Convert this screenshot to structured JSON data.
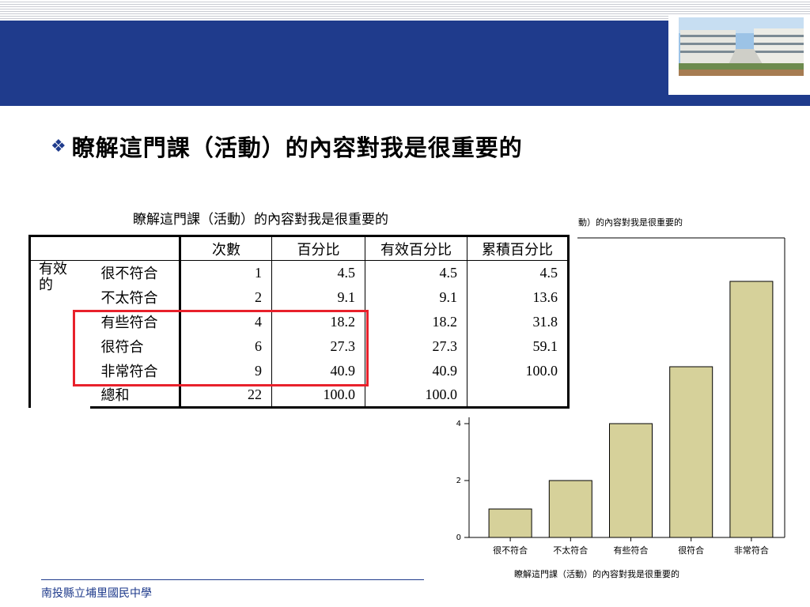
{
  "slide": {
    "heading": "瞭解這門課（活動）的內容對我是很重要的",
    "bullet_icon": "diamond-bullet-icon",
    "footer": "南投縣立埔里國民中學",
    "accent_color": "#1f3b8c",
    "highlight_color": "#e8212b"
  },
  "table": {
    "title": "瞭解這門課（活動）的內容對我是很重要的",
    "headers": [
      "次數",
      "百分比",
      "有效百分比",
      "累積百分比"
    ],
    "group_label": "有效的",
    "rows": [
      {
        "label": "很不符合",
        "count": "1",
        "percent": "4.5",
        "valid": "4.5",
        "cumulative": "4.5"
      },
      {
        "label": "不太符合",
        "count": "2",
        "percent": "9.1",
        "valid": "9.1",
        "cumulative": "13.6"
      },
      {
        "label": "有些符合",
        "count": "4",
        "percent": "18.2",
        "valid": "18.2",
        "cumulative": "31.8"
      },
      {
        "label": "很符合",
        "count": "6",
        "percent": "27.3",
        "valid": "27.3",
        "cumulative": "59.1"
      },
      {
        "label": "非常符合",
        "count": "9",
        "percent": "40.9",
        "valid": "40.9",
        "cumulative": "100.0"
      },
      {
        "label": "總和",
        "count": "22",
        "percent": "100.0",
        "valid": "100.0",
        "cumulative": ""
      }
    ]
  },
  "chart_data": {
    "type": "bar",
    "title_fragment": "動）的內容對我是很重要的",
    "xlabel": "瞭解這門課（活動）的內容對我是很重要的",
    "ylabel": "",
    "categories": [
      "很不符合",
      "不太符合",
      "有些符合",
      "很符合",
      "非常符合"
    ],
    "values": [
      1,
      2,
      4,
      6,
      9
    ],
    "yticks": [
      0,
      2,
      4
    ],
    "ylim": [
      0,
      9
    ],
    "bar_color": "#d6d19a",
    "grid": false
  }
}
